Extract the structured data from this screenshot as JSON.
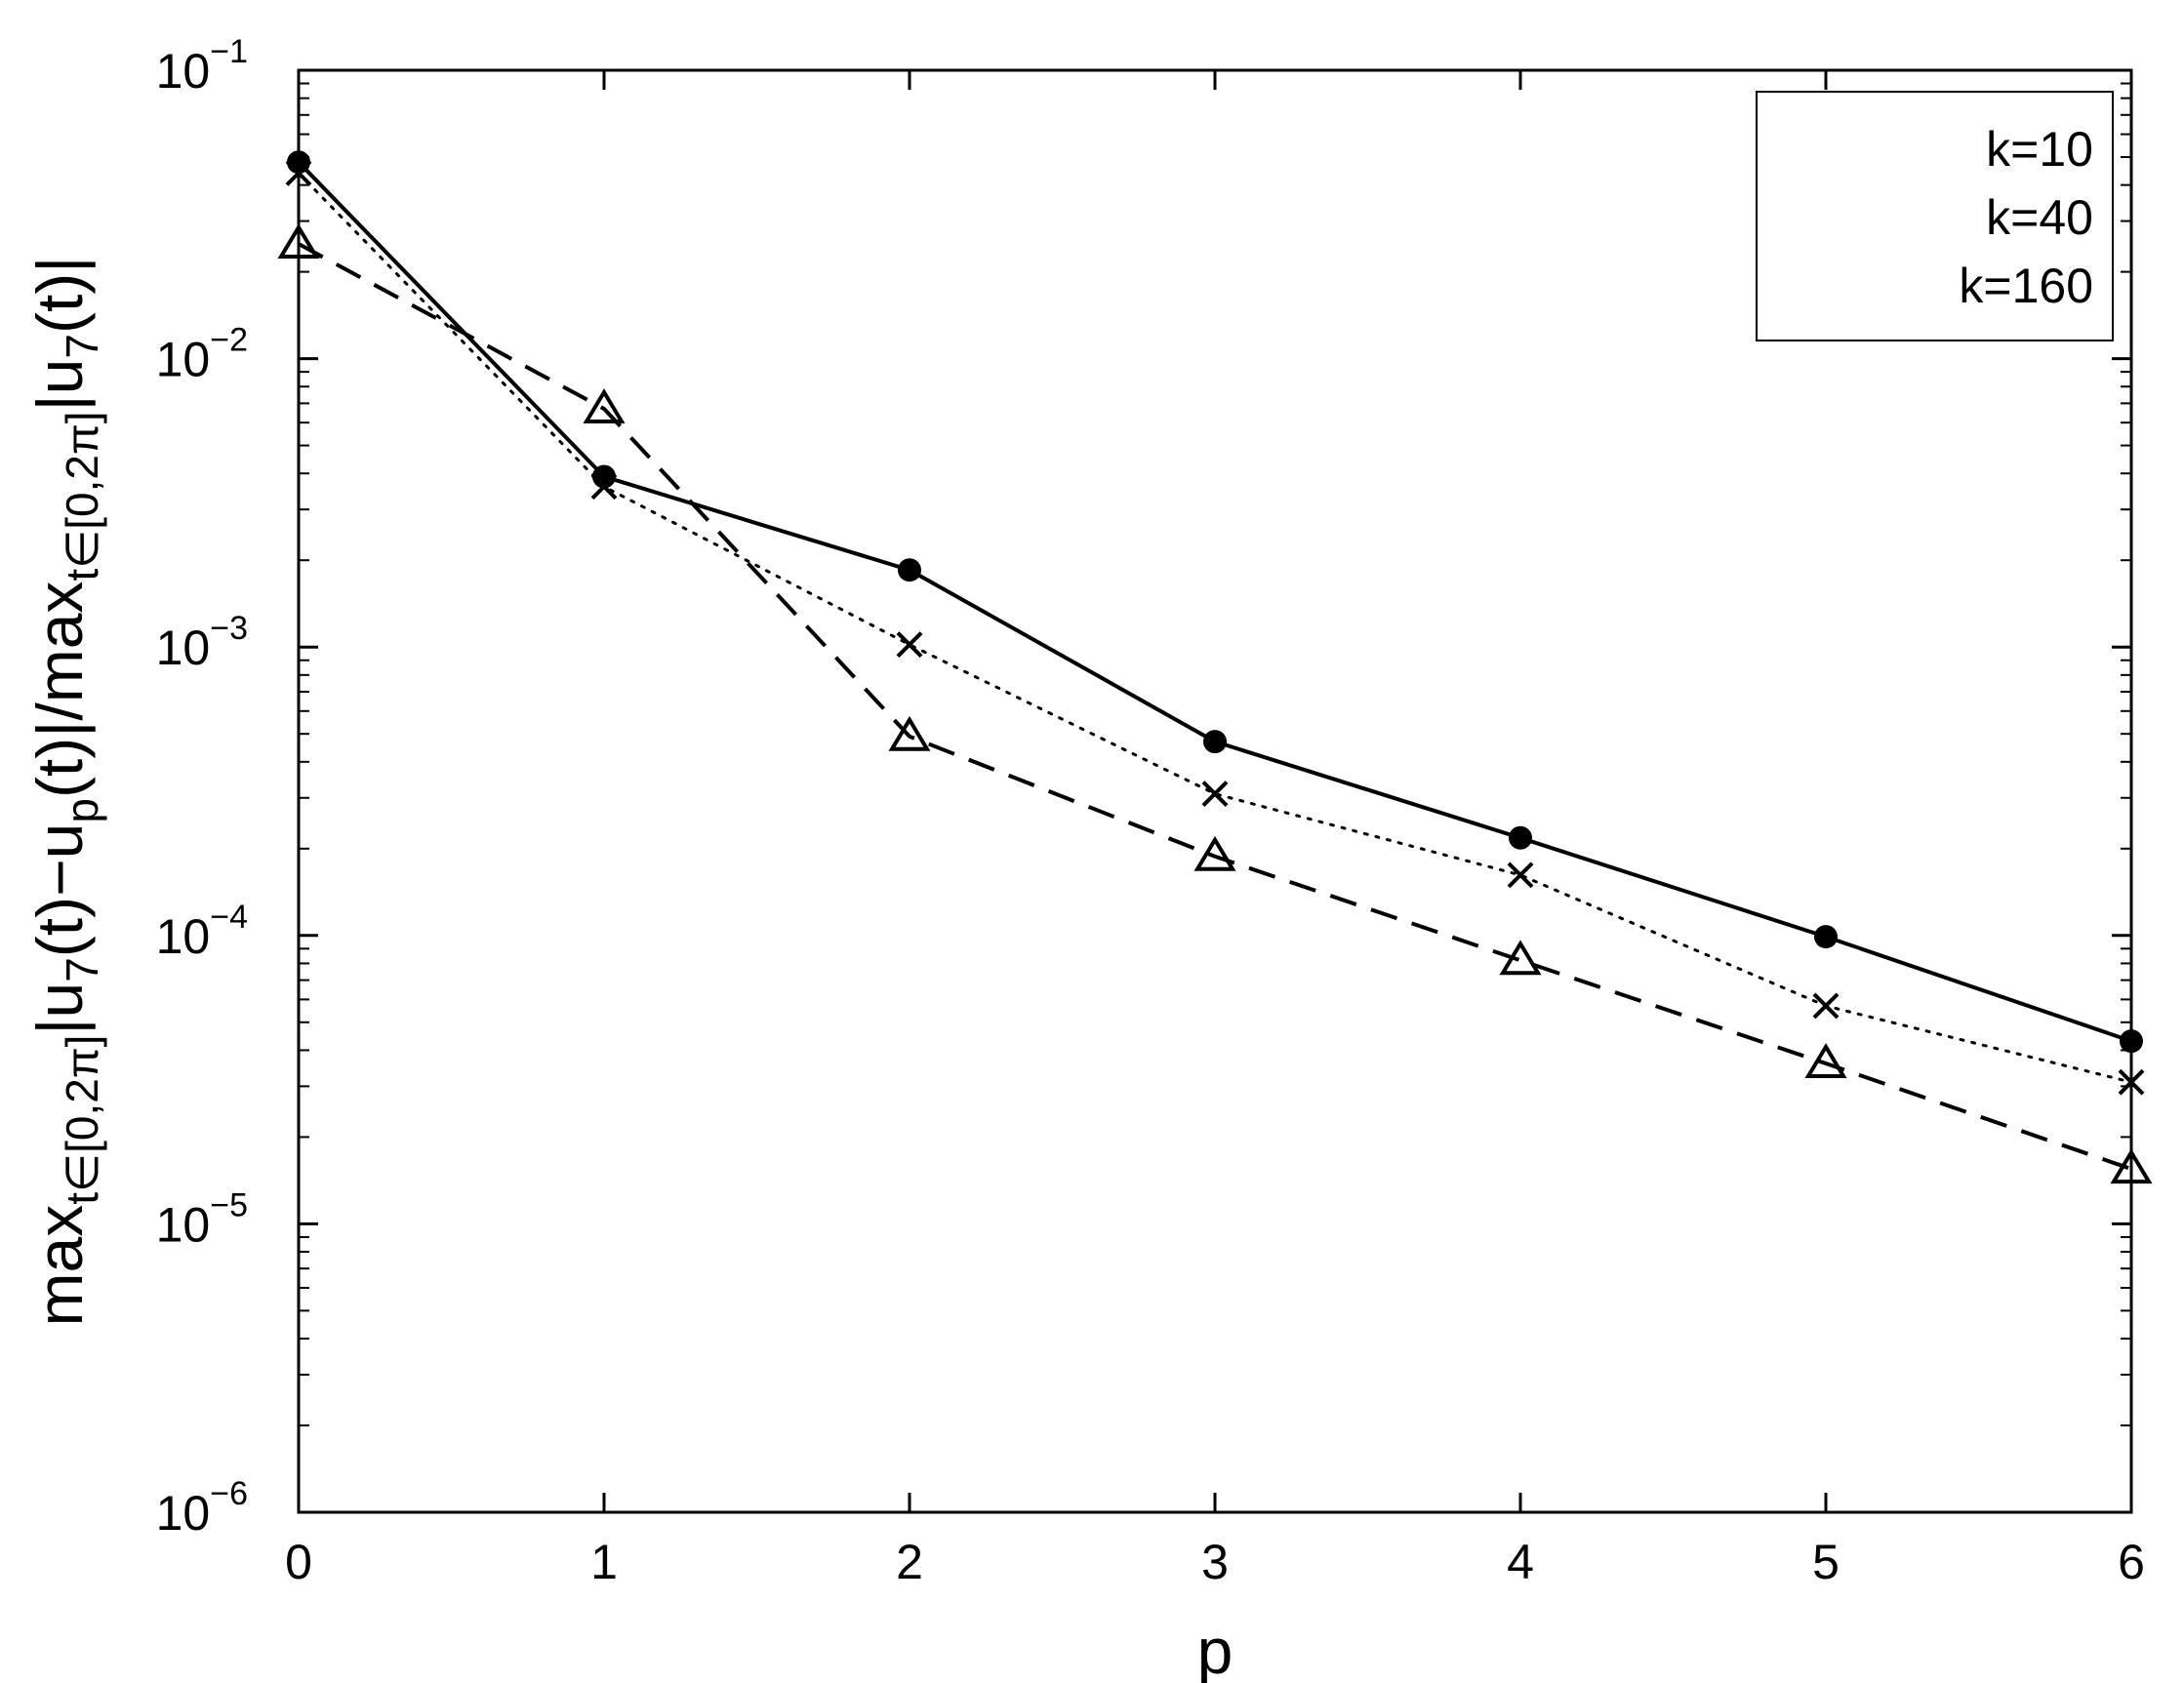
{
  "chart_data": {
    "type": "line",
    "title": "",
    "xlabel": "p",
    "ylabel": {
      "main": "max",
      "sub1": "t∈[0,2π]",
      "part2": "|u",
      "sub2": "7",
      "part3": "(t)−u",
      "sub3": "p",
      "part4": "(t)|/max",
      "sub4": "t∈[0,2π]",
      "part5": "|u",
      "sub5": "7",
      "part6": "(t)|"
    },
    "x": [
      0,
      1,
      2,
      3,
      4,
      5,
      6
    ],
    "xlim": [
      0,
      6
    ],
    "ylim": [
      1e-06,
      0.1
    ],
    "yscale": "log",
    "x_ticks": [
      "0",
      "1",
      "2",
      "3",
      "4",
      "5",
      "6"
    ],
    "y_ticks": [
      {
        "value": 1e-06,
        "base": "10",
        "exp": "−6"
      },
      {
        "value": 1e-05,
        "base": "10",
        "exp": "−5"
      },
      {
        "value": 0.0001,
        "base": "10",
        "exp": "−4"
      },
      {
        "value": 0.001,
        "base": "10",
        "exp": "−3"
      },
      {
        "value": 0.01,
        "base": "10",
        "exp": "−2"
      },
      {
        "value": 0.1,
        "base": "10",
        "exp": "−1"
      }
    ],
    "grid": false,
    "legend_position": "top-right",
    "series": [
      {
        "name": "k=10",
        "line": "solid",
        "marker": "dot",
        "color": "#000000",
        "values": [
          0.048,
          0.0039,
          0.00185,
          0.00047,
          0.000218,
          9.9e-05,
          4.3e-05
        ]
      },
      {
        "name": "k=40",
        "line": "dotted",
        "marker": "x",
        "color": "#000000",
        "values": [
          0.044,
          0.0036,
          0.00102,
          0.00031,
          0.000162,
          5.7e-05,
          3.1e-05
        ]
      },
      {
        "name": "k=160",
        "line": "dashed",
        "marker": "triangle",
        "color": "#000000",
        "values": [
          0.025,
          0.0067,
          0.00049,
          0.000188,
          8.2e-05,
          3.6e-05,
          1.55e-05
        ]
      }
    ]
  }
}
